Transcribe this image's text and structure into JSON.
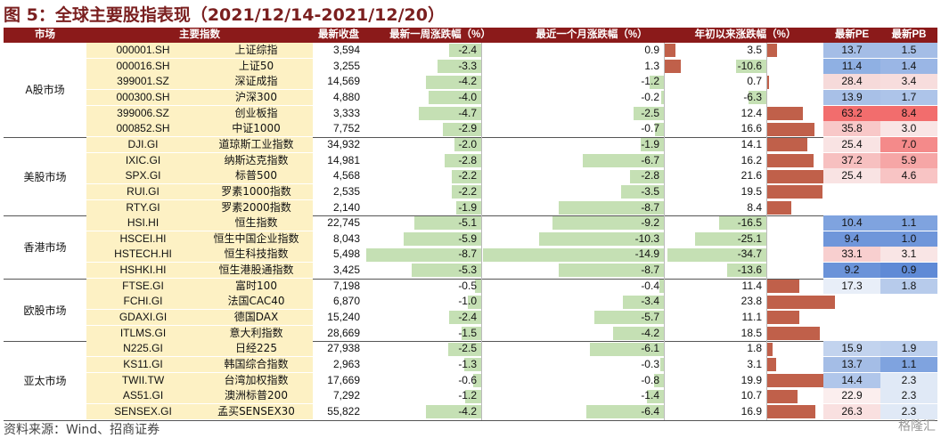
{
  "title": "图 5：全球主要股指表现（2021/12/14-2021/12/20）",
  "headers": {
    "market": "市场",
    "index": "主要指数",
    "close": "最新收盘",
    "week": "最新一周涨跌幅（%）",
    "month": "最近一个月涨跌幅（%）",
    "ytd": "年初以来涨跌幅（%）",
    "pe": "最新PE",
    "pb": "最新PB"
  },
  "colors": {
    "header": "#8b1a1a",
    "highlight": "#fdf1c4",
    "bar_negative": "#c5e0b4",
    "bar_positive": "#c0604a"
  },
  "groups": [
    {
      "market": "A股市场",
      "rows": [
        {
          "code": "000001.SH",
          "name": "上证综指",
          "close": "3,594",
          "week": -2.4,
          "month": 0.9,
          "ytd": 3.5,
          "pe": "13.7",
          "pb": "1.5",
          "pe_color": "#a4bde6",
          "pb_color": "#a4bde6"
        },
        {
          "code": "000016.SH",
          "name": "上证50",
          "close": "3,255",
          "week": -3.3,
          "month": 1.3,
          "ytd": -10.6,
          "pe": "11.4",
          "pb": "1.4",
          "pe_color": "#8fb0e3",
          "pb_color": "#9ab6e5"
        },
        {
          "code": "399001.SZ",
          "name": "深证成指",
          "close": "14,569",
          "week": -4.2,
          "month": -1.2,
          "ytd": 0.7,
          "pe": "28.4",
          "pb": "3.4",
          "pe_color": "#f6dada",
          "pb_color": "#f7dddd"
        },
        {
          "code": "000300.SH",
          "name": "沪深300",
          "close": "4,880",
          "week": -4.0,
          "month": -0.2,
          "ytd": -6.3,
          "pe": "13.9",
          "pb": "1.7",
          "pe_color": "#a8c0e7",
          "pb_color": "#adc4e9"
        },
        {
          "code": "399006.SZ",
          "name": "创业板指",
          "close": "3,333",
          "week": -4.7,
          "month": -2.5,
          "ytd": 12.4,
          "pe": "63.2",
          "pb": "8.4",
          "pe_color": "#f26d6d",
          "pb_color": "#f26d6d"
        },
        {
          "code": "000852.SH",
          "name": "中证1000",
          "close": "7,752",
          "week": -2.9,
          "month": -0.7,
          "ytd": 16.6,
          "pe": "35.8",
          "pb": "3.0",
          "pe_color": "#f8c8c8",
          "pb_color": "#f9e5e5"
        }
      ]
    },
    {
      "market": "美股市场",
      "rows": [
        {
          "code": "DJI.GI",
          "name": "道琼斯工业指数",
          "close": "34,932",
          "week": -2.0,
          "month": -1.9,
          "ytd": 14.1,
          "pe": "25.4",
          "pb": "7.0",
          "pe_color": "#f9e3e3",
          "pb_color": "#f48a8a"
        },
        {
          "code": "IXIC.GI",
          "name": "纳斯达克指数",
          "close": "14,981",
          "week": -2.8,
          "month": -6.7,
          "ytd": 16.2,
          "pe": "37.2",
          "pb": "5.9",
          "pe_color": "#f7c0c0",
          "pb_color": "#f6a6a6"
        },
        {
          "code": "SPX.GI",
          "name": "标普500",
          "close": "4,568",
          "week": -2.2,
          "month": -2.8,
          "ytd": 21.6,
          "pe": "25.4",
          "pb": "4.6",
          "pe_color": "#f9e3e3",
          "pb_color": "#f8c4c4"
        },
        {
          "code": "RUI.GI",
          "name": "罗素1000指数",
          "close": "2,535",
          "week": -2.2,
          "month": -3.5,
          "ytd": 19.5,
          "pe": "",
          "pb": "",
          "pe_color": "",
          "pb_color": ""
        },
        {
          "code": "RTY.GI",
          "name": "罗素2000指数",
          "close": "2,140",
          "week": -1.9,
          "month": -8.7,
          "ytd": 8.4,
          "pe": "",
          "pb": "",
          "pe_color": "",
          "pb_color": ""
        }
      ]
    },
    {
      "market": "香港市场",
      "rows": [
        {
          "code": "HSI.HI",
          "name": "恒生指数",
          "close": "22,745",
          "week": -5.1,
          "month": -9.2,
          "ytd": -16.5,
          "pe": "10.4",
          "pb": "1.1",
          "pe_color": "#7fa3df",
          "pb_color": "#7fa3df"
        },
        {
          "code": "HSCEI.HI",
          "name": "恒生中国企业指数",
          "close": "8,043",
          "week": -5.9,
          "month": -10.3,
          "ytd": -25.1,
          "pe": "9.4",
          "pb": "1.0",
          "pe_color": "#6f96da",
          "pb_color": "#6f96da"
        },
        {
          "code": "HSTECH.HI",
          "name": "恒生科技指数",
          "close": "5,498",
          "week": -8.7,
          "month": -14.9,
          "ytd": -34.7,
          "pe": "33.1",
          "pb": "3.1",
          "pe_color": "#f8cfcf",
          "pb_color": "#f9e5e5"
        },
        {
          "code": "HSHKI.HI",
          "name": "恒生港股通指数",
          "close": "3,425",
          "week": -5.3,
          "month": -8.7,
          "ytd": -13.6,
          "pe": "9.2",
          "pb": "0.9",
          "pe_color": "#6b93d9",
          "pb_color": "#5f8ad6"
        }
      ]
    },
    {
      "market": "欧股市场",
      "rows": [
        {
          "code": "FTSE.GI",
          "name": "富时100",
          "close": "7,198",
          "week": -0.5,
          "month": -0.4,
          "ytd": 11.4,
          "pe": "17.3",
          "pb": "1.8",
          "pe_color": "#e8eef8",
          "pb_color": "#b7cbeb"
        },
        {
          "code": "FCHI.GI",
          "name": "法国CAC40",
          "close": "6,870",
          "week": -1.0,
          "month": -3.4,
          "ytd": 23.8,
          "pe": "",
          "pb": "",
          "pe_color": "",
          "pb_color": ""
        },
        {
          "code": "GDAXI.GI",
          "name": "德国DAX",
          "close": "15,240",
          "week": -2.4,
          "month": -5.7,
          "ytd": 11.1,
          "pe": "",
          "pb": "",
          "pe_color": "",
          "pb_color": ""
        },
        {
          "code": "ITLMS.GI",
          "name": "意大利指数",
          "close": "28,669",
          "week": -1.5,
          "month": -4.2,
          "ytd": 18.5,
          "pe": "",
          "pb": "",
          "pe_color": "",
          "pb_color": ""
        }
      ]
    },
    {
      "market": "亚太市场",
      "rows": [
        {
          "code": "N225.GI",
          "name": "日经225",
          "close": "27,938",
          "week": -2.5,
          "month": -6.1,
          "ytd": 1.8,
          "pe": "15.9",
          "pb": "1.9",
          "pe_color": "#c2d3ee",
          "pb_color": "#bccfed"
        },
        {
          "code": "KS11.GI",
          "name": "韩国综合指数",
          "close": "2,963",
          "week": -1.3,
          "month": -0.3,
          "ytd": 3.1,
          "pe": "13.7",
          "pb": "1.1",
          "pe_color": "#a4bde6",
          "pb_color": "#7fa3df"
        },
        {
          "code": "TWII.TW",
          "name": "台湾加权指数",
          "close": "17,669",
          "week": -0.6,
          "month": -0.8,
          "ytd": 19.9,
          "pe": "14.4",
          "pb": "2.3",
          "pe_color": "#b0c6ea",
          "pb_color": "#e0e9f6"
        },
        {
          "code": "AS51.GI",
          "name": "澳洲标普200",
          "close": "7,292",
          "week": -1.2,
          "month": -1.4,
          "ytd": 10.7,
          "pe": "22.9",
          "pb": "2.3",
          "pe_color": "#fbeeee",
          "pb_color": "#e0e9f6"
        },
        {
          "code": "SENSEX.GI",
          "name": "孟买SENSEX30",
          "close": "55,822",
          "week": -4.2,
          "month": -6.4,
          "ytd": 16.9,
          "pe": "26.3",
          "pb": "2.3",
          "pe_color": "#f9e0e0",
          "pb_color": "#e0e9f6"
        }
      ]
    }
  ],
  "source": "资料来源：Wind、招商证券",
  "watermark": "格隆汇"
}
